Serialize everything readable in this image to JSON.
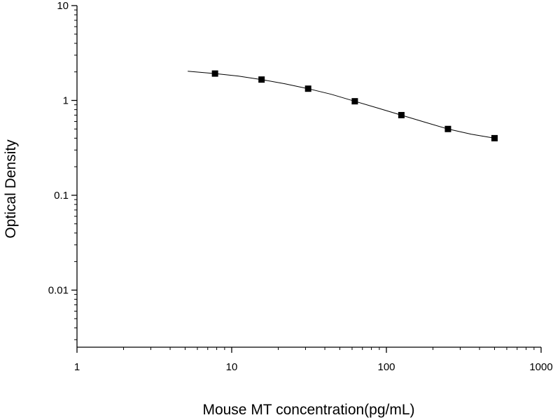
{
  "chart_data": {
    "type": "scatter",
    "title": "",
    "xlabel": "Mouse MT concentration(pg/mL)",
    "ylabel": "Optical Density",
    "xscale": "log",
    "yscale": "log",
    "xlim": [
      1,
      1000
    ],
    "ylim": [
      0.0025,
      10
    ],
    "x_ticks": [
      {
        "value": 1,
        "label": "1"
      },
      {
        "value": 10,
        "label": "10"
      },
      {
        "value": 100,
        "label": "100"
      },
      {
        "value": 1000,
        "label": "1000"
      }
    ],
    "y_ticks": [
      {
        "value": 10,
        "label": "10"
      },
      {
        "value": 1,
        "label": "1"
      },
      {
        "value": 0.1,
        "label": "0.1"
      },
      {
        "value": 0.01,
        "label": "0.01"
      }
    ],
    "grid": false,
    "legend": "none",
    "marker_color": "#000000",
    "line_color": "#000000",
    "series": [
      {
        "mode": "markers",
        "x": [
          7.8,
          15.6,
          31.2,
          62.5,
          125,
          250,
          500
        ],
        "y": [
          1.92,
          1.66,
          1.33,
          0.98,
          0.7,
          0.5,
          0.4
        ]
      },
      {
        "mode": "line",
        "x": [
          5.2,
          7.8,
          11,
          15.6,
          22,
          31.2,
          44,
          62.5,
          88,
          125,
          177,
          250,
          354,
          500
        ],
        "y": [
          2.03,
          1.92,
          1.81,
          1.66,
          1.5,
          1.33,
          1.16,
          0.98,
          0.83,
          0.7,
          0.59,
          0.5,
          0.44,
          0.4
        ]
      }
    ]
  }
}
